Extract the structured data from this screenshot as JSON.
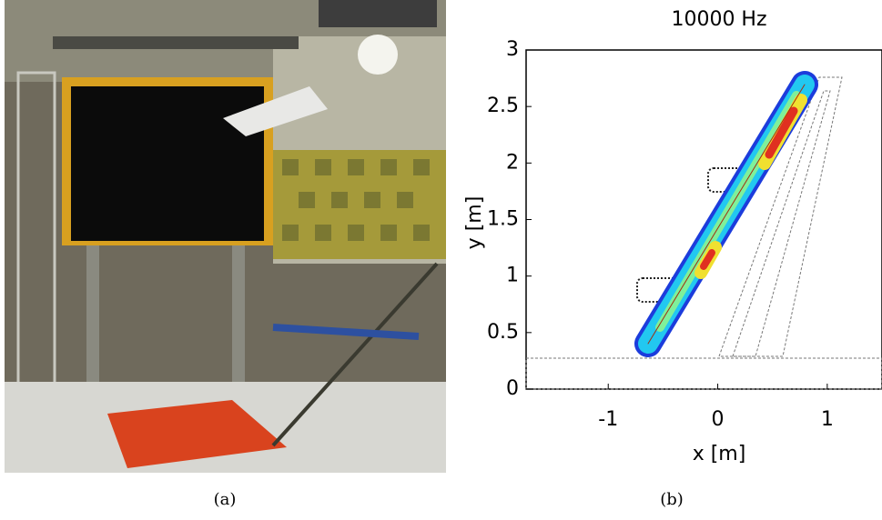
{
  "figure": {
    "captions": [
      "(a)",
      "(b)"
    ]
  },
  "chart_data": {
    "type": "source-map",
    "title": "10000 Hz",
    "xlabel": "x [m]",
    "ylabel": "y [m]",
    "xlim": [
      -1.75,
      1.5
    ],
    "ylim": [
      0,
      3
    ],
    "xticks": [
      -1,
      0,
      1
    ],
    "yticks": [
      0,
      0.5,
      1,
      1.5,
      2,
      2.5,
      3
    ]
  }
}
